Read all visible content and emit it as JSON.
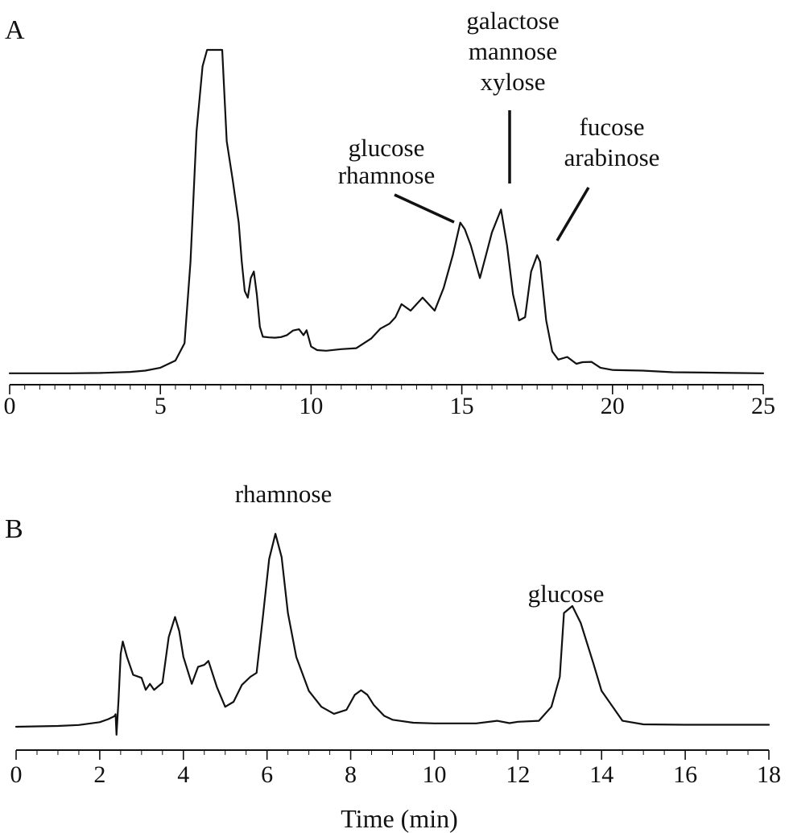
{
  "chart_data": [
    {
      "type": "line",
      "panel_label": "A",
      "xlabel": "",
      "ylabel": "",
      "xlim": [
        0,
        25
      ],
      "x_ticks": [
        0,
        5,
        10,
        15,
        20,
        25
      ],
      "x_minor_step": 0.5,
      "grid": false,
      "legend": "none",
      "y_clipped_at": 100,
      "series": [
        {
          "x": [
            0,
            1,
            2,
            3,
            4,
            4.5,
            5,
            5.5,
            5.8,
            6.0,
            6.2,
            6.4,
            6.55,
            6.6,
            7.05,
            7.2,
            7.4,
            7.6,
            7.7,
            7.8,
            7.9,
            8.0,
            8.1,
            8.2,
            8.3,
            8.4,
            8.6,
            8.8,
            9.0,
            9.2,
            9.4,
            9.6,
            9.75,
            9.85,
            10.0,
            10.2,
            10.5,
            11.0,
            11.5,
            12.0,
            12.3,
            12.6,
            12.8,
            13.0,
            13.3,
            13.7,
            14.1,
            14.4,
            14.7,
            14.95,
            15.1,
            15.3,
            15.6,
            15.8,
            16.0,
            16.3,
            16.5,
            16.7,
            16.9,
            17.1,
            17.3,
            17.5,
            17.6,
            17.8,
            18.0,
            18.2,
            18.5,
            18.8,
            19.0,
            19.3,
            19.6,
            20.0,
            21.0,
            22.0,
            23.0,
            24.0,
            25.0
          ],
          "y": [
            0.8,
            0.8,
            0.8,
            0.9,
            1.2,
            1.6,
            2.5,
            4.7,
            10.0,
            35.0,
            75.0,
            95.0,
            100,
            100,
            100,
            72.0,
            60.0,
            47.0,
            35.0,
            26.0,
            24.0,
            30.0,
            32.0,
            25.0,
            15.0,
            12.0,
            11.8,
            11.7,
            11.9,
            12.5,
            13.9,
            14.3,
            12.5,
            14.0,
            9.0,
            7.9,
            7.7,
            8.2,
            8.5,
            11.5,
            14.5,
            16.0,
            18.0,
            22.0,
            20.0,
            24.0,
            20.0,
            27.0,
            37.0,
            47.0,
            45.0,
            40.0,
            30.0,
            37.0,
            44.0,
            51.0,
            40.0,
            25.0,
            17.0,
            18.0,
            32.0,
            37.0,
            35.0,
            17.0,
            7.5,
            5.0,
            5.8,
            3.7,
            4.2,
            4.3,
            2.5,
            1.8,
            1.6,
            1.1,
            1.0,
            0.9,
            0.8
          ]
        }
      ],
      "annotations": [
        {
          "lines": [
            "glucose",
            "rhamnose"
          ],
          "x": 14.9
        },
        {
          "lines": [
            "galactose",
            "mannose",
            "xylose"
          ],
          "x": 16.3
        },
        {
          "lines": [
            "fucose",
            "arabinose"
          ],
          "x": 17.5
        }
      ]
    },
    {
      "type": "line",
      "panel_label": "B",
      "xlabel": "Time (min)",
      "ylabel": "",
      "xlim": [
        0,
        18
      ],
      "x_ticks": [
        0,
        2,
        4,
        6,
        8,
        10,
        12,
        14,
        16,
        18
      ],
      "x_minor_step": 0.5,
      "grid": false,
      "legend": "none",
      "series": [
        {
          "x": [
            0,
            0.5,
            1.0,
            1.5,
            2.0,
            2.2,
            2.35,
            2.38,
            2.4,
            2.45,
            2.5,
            2.55,
            2.65,
            2.8,
            3.0,
            3.1,
            3.2,
            3.3,
            3.5,
            3.65,
            3.8,
            3.9,
            4.0,
            4.2,
            4.35,
            4.5,
            4.6,
            4.8,
            5.0,
            5.2,
            5.4,
            5.6,
            5.75,
            5.9,
            6.05,
            6.2,
            6.35,
            6.5,
            6.7,
            7.0,
            7.3,
            7.6,
            7.9,
            8.1,
            8.25,
            8.4,
            8.55,
            8.8,
            9.0,
            9.5,
            10.0,
            10.5,
            11.0,
            11.5,
            11.8,
            12.0,
            12.5,
            12.8,
            13.0,
            13.1,
            13.3,
            13.5,
            13.8,
            14.0,
            14.5,
            15.0,
            16.0,
            17.0,
            18.0
          ],
          "y": [
            0,
            0.2,
            0.4,
            0.9,
            2.3,
            3.8,
            5.3,
            6.3,
            -4.0,
            14.0,
            36.5,
            42.7,
            35.0,
            26.0,
            24.5,
            18.5,
            21.5,
            18.5,
            22.0,
            45.0,
            55.0,
            48.0,
            35.0,
            21.5,
            30.0,
            31.0,
            33.0,
            20.0,
            10.0,
            12.5,
            21.0,
            25.0,
            27.0,
            55.0,
            84.0,
            96.7,
            85.0,
            57.0,
            35.0,
            18.0,
            10.0,
            6.5,
            8.5,
            16.0,
            18.3,
            16.0,
            11.0,
            5.5,
            3.5,
            2.0,
            1.7,
            1.7,
            1.7,
            3.0,
            1.8,
            2.5,
            3.0,
            10.0,
            25.0,
            57.0,
            60.5,
            52.0,
            32.0,
            18.0,
            3.0,
            1.2,
            1.0,
            1.0,
            1.0
          ]
        }
      ],
      "annotations": [
        {
          "lines": [
            "rhamnose"
          ],
          "x": 6.2
        },
        {
          "lines": [
            "glucose"
          ],
          "x": 13.1
        }
      ]
    }
  ]
}
